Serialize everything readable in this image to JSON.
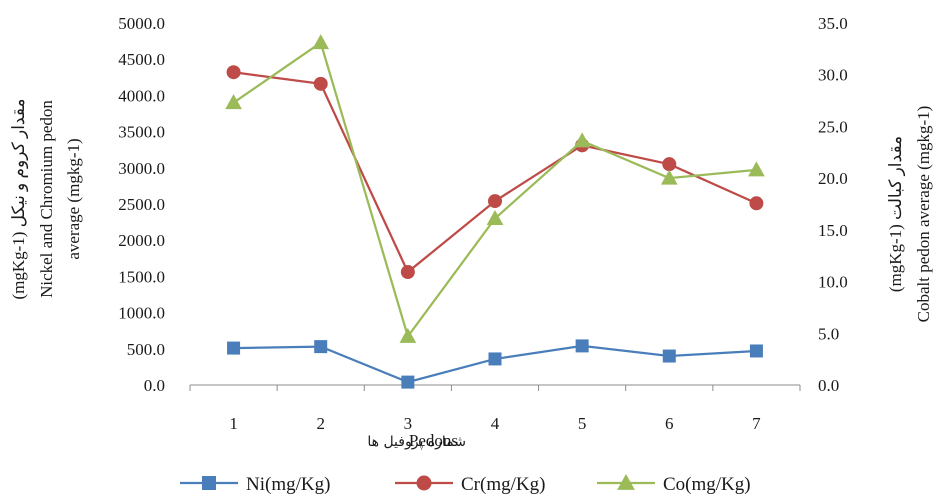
{
  "chart_data": {
    "type": "line",
    "categories": [
      "1",
      "2",
      "3",
      "4",
      "5",
      "6",
      "7"
    ],
    "xlabel": "Pedons",
    "xlabel_fa": "شماره پروفیل ها",
    "ylabel_left_lines": [
      "(mgKg-1) مقدار کروم و نیکل",
      "Nickel and Chromium pedon",
      "average (mgkg-1)"
    ],
    "ylabel_right_lines": [
      "(mgKg-1) مقدار کبالت",
      "Cobalt pedon average (mgkg-1)"
    ],
    "y_left": {
      "min": 0,
      "max": 5000,
      "step": 500,
      "ticks": [
        "0.0",
        "500.0",
        "1000.0",
        "1500.0",
        "2000.0",
        "2500.0",
        "3000.0",
        "3500.0",
        "4000.0",
        "4500.0",
        "5000.0"
      ]
    },
    "y_right": {
      "min": 0,
      "max": 35,
      "step": 5,
      "ticks": [
        "0.0",
        "5.0",
        "10.0",
        "15.0",
        "20.0",
        "25.0",
        "30.0",
        "35.0"
      ]
    },
    "series": [
      {
        "name": "Ni(mg/Kg)",
        "axis": "left",
        "color": "#4a7ebb",
        "marker": "square",
        "values": [
          510,
          530,
          40,
          360,
          540,
          400,
          470
        ]
      },
      {
        "name": "Cr(mg/Kg)",
        "axis": "left",
        "color": "#be4b48",
        "marker": "circle",
        "values": [
          4320,
          4160,
          1560,
          2540,
          3310,
          3050,
          2510
        ]
      },
      {
        "name": "Co(mg/Kg)",
        "axis": "right",
        "color": "#9bbb59",
        "marker": "triangle",
        "values": [
          27.3,
          33.1,
          4.7,
          16.1,
          23.6,
          20.0,
          20.8
        ]
      }
    ],
    "legend": "bottom",
    "grid": false
  }
}
